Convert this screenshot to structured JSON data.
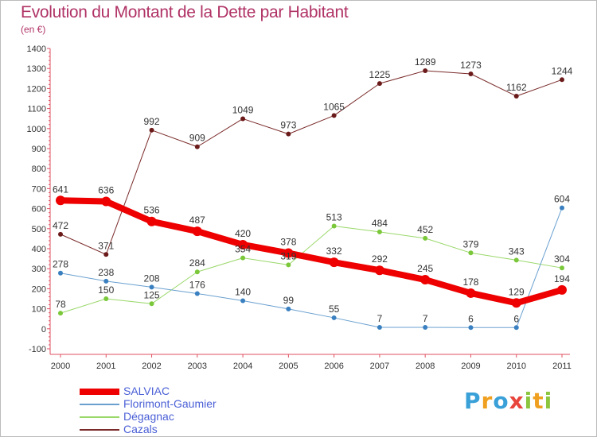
{
  "title": "Evolution du Montant de la Dette par Habitant",
  "subtitle": "(en €)",
  "logo": {
    "text": "Proxiti",
    "letters": [
      {
        "ch": "P",
        "color": "#3aa0d8"
      },
      {
        "ch": "r",
        "color": "#f0a020"
      },
      {
        "ch": "o",
        "color": "#3aa0d8"
      },
      {
        "ch": "x",
        "color": "#e8453c"
      },
      {
        "ch": "i",
        "color": "#8cc63f"
      },
      {
        "ch": "t",
        "color": "#f0a020"
      },
      {
        "ch": "i",
        "color": "#8cc63f"
      }
    ]
  },
  "chart_data": {
    "type": "line",
    "x": [
      "2000",
      "2001",
      "2002",
      "2003",
      "2004",
      "2005",
      "2006",
      "2007",
      "2008",
      "2009",
      "2010",
      "2011"
    ],
    "ylim": [
      -100,
      1400
    ],
    "yticks": [
      "-100",
      "0",
      "100",
      "200",
      "300",
      "400",
      "500",
      "600",
      "700",
      "800",
      "900",
      "1000",
      "1100",
      "1200",
      "1300",
      "1400"
    ],
    "grid": false,
    "legend_position": "bottom-left",
    "series": [
      {
        "name": "Cazals",
        "color": "#7a2a2a",
        "point_color": "#6b1a1a",
        "values": [
          472,
          371,
          992,
          909,
          1049,
          973,
          1065,
          1225,
          1289,
          1273,
          1162,
          1244
        ],
        "labels": [
          "472",
          "371",
          "992",
          "909",
          "1049",
          "973",
          "1065",
          "1225",
          "1289",
          "1273",
          "1162",
          "1244"
        ],
        "line_width": 1
      },
      {
        "name": "Dégagnac",
        "color": "#9ad86a",
        "point_color": "#7ac83a",
        "values": [
          78,
          150,
          125,
          284,
          354,
          319,
          513,
          484,
          452,
          379,
          343,
          304
        ],
        "labels": [
          "78",
          "150",
          "125",
          "284",
          "354",
          "319",
          "513",
          "484",
          "452",
          "379",
          "343",
          "304"
        ],
        "line_width": 1
      },
      {
        "name": "Florimont-Gaumier",
        "color": "#6aa0d0",
        "point_color": "#3a80c0",
        "values": [
          278,
          238,
          208,
          176,
          140,
          99,
          55,
          7,
          7,
          6,
          6,
          604
        ],
        "labels": [
          "278",
          "238",
          "208",
          "176",
          "140",
          "99",
          "55",
          "7",
          "7",
          "6",
          "6",
          "604"
        ],
        "line_width": 1
      },
      {
        "name": "SALVIAC",
        "color": "#ee0000",
        "point_color": "#ee0000",
        "values": [
          641,
          636,
          536,
          487,
          420,
          378,
          332,
          292,
          245,
          178,
          129,
          194
        ],
        "labels": [
          "641",
          "636",
          "536",
          "487",
          "420",
          "378",
          "332",
          "292",
          "245",
          "178",
          "129",
          "194"
        ],
        "line_width": 8
      }
    ],
    "legend": [
      "SALVIAC",
      "Florimont-Gaumier",
      "Dégagnac",
      "Cazals"
    ]
  }
}
